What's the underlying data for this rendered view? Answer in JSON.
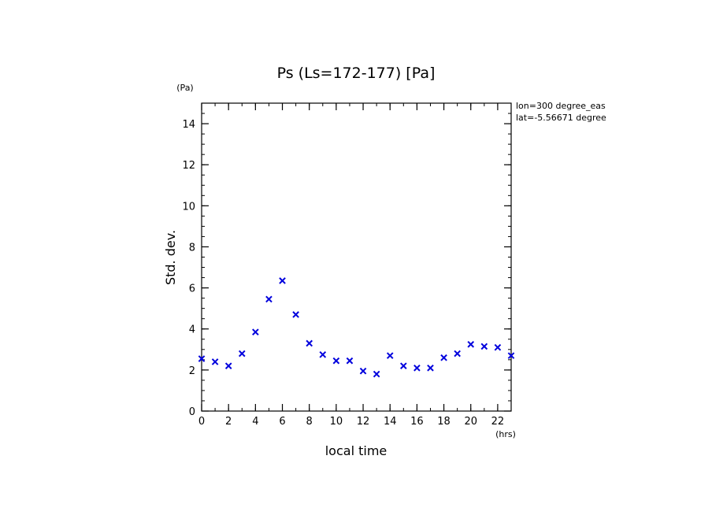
{
  "chart_data": {
    "type": "scatter",
    "title": "Ps (Ls=172-177) [Pa]",
    "xlabel": "local time",
    "ylabel": "Std. dev.",
    "x_unit": "(hrs)",
    "y_unit": "(Pa)",
    "xlim": [
      0,
      23
    ],
    "ylim": [
      0,
      15
    ],
    "x_ticks": [
      0,
      2,
      4,
      6,
      8,
      10,
      12,
      14,
      16,
      18,
      20,
      22
    ],
    "y_ticks": [
      0,
      2,
      4,
      6,
      8,
      10,
      12,
      14
    ],
    "annotations": [
      "lon=300 degree_eas",
      "lat=-5.56671 degree"
    ],
    "marker": "x",
    "marker_color": "#0000dd",
    "grid": false,
    "series": [
      {
        "x": [
          0,
          1,
          2,
          3,
          4,
          5,
          6,
          7,
          8,
          9,
          10,
          11,
          12,
          13,
          14,
          15,
          16,
          17,
          18,
          19,
          20,
          21,
          22,
          23
        ],
        "y": [
          2.55,
          2.4,
          2.2,
          2.8,
          3.85,
          5.45,
          6.35,
          4.7,
          3.3,
          2.75,
          2.45,
          2.45,
          1.95,
          1.8,
          2.7,
          2.2,
          2.1,
          2.1,
          2.6,
          2.8,
          3.25,
          3.15,
          3.1,
          2.7
        ]
      }
    ]
  }
}
